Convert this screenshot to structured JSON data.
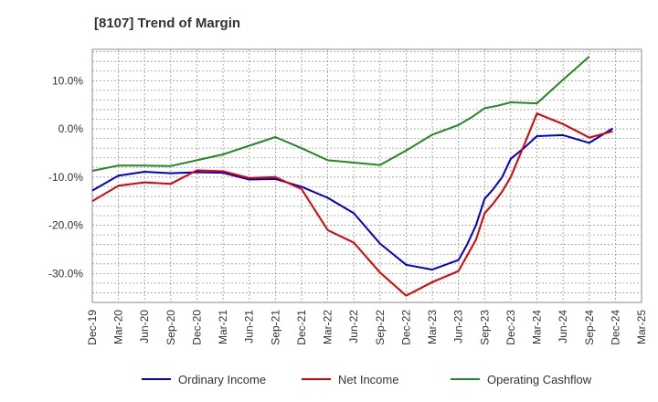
{
  "chart_data": {
    "type": "line",
    "title": "[8107]  Trend of Margin",
    "xlabel": "",
    "ylabel": "",
    "x": [
      "Dec-19",
      "Mar-20",
      "Jun-20",
      "Sep-20",
      "Dec-20",
      "Mar-21",
      "Jun-21",
      "Sep-21",
      "Dec-21",
      "Mar-22",
      "Jun-22",
      "Sep-22",
      "Dec-22",
      "Mar-23",
      "Jun-23",
      "Sep-23",
      "Dec-23",
      "Mar-24",
      "Jun-24",
      "Sep-24",
      "Dec-24",
      "Mar-25"
    ],
    "ylim": [
      -36,
      16.5
    ],
    "yticks": [
      10,
      0,
      -10,
      -20,
      -30
    ],
    "ytick_labels": [
      "10.0%",
      "0.0%",
      "-10.0%",
      "-20.0%",
      "-30.0%"
    ],
    "grid": true,
    "legend_position": "bottom",
    "series": [
      {
        "name": "Ordinary Income",
        "color": "#0000cc",
        "points": [
          [
            0,
            -12.8
          ],
          [
            1,
            -9.7
          ],
          [
            2,
            -8.9
          ],
          [
            3,
            -9.2
          ],
          [
            4,
            -9.0
          ],
          [
            5,
            -9.1
          ],
          [
            6,
            -10.5
          ],
          [
            7,
            -10.4
          ],
          [
            8,
            -12.0
          ],
          [
            9,
            -14.3
          ],
          [
            10,
            -17.5
          ],
          [
            11,
            -23.8
          ],
          [
            12,
            -28.2
          ],
          [
            13,
            -29.2
          ],
          [
            14,
            -27.2
          ],
          [
            14.33,
            -24.0
          ],
          [
            14.67,
            -20.0
          ],
          [
            15,
            -14.5
          ],
          [
            15.33,
            -12.5
          ],
          [
            15.67,
            -10.0
          ],
          [
            16,
            -6.2
          ],
          [
            16.5,
            -4.0
          ],
          [
            17,
            -1.5
          ],
          [
            18,
            -1.3
          ],
          [
            19,
            -2.9
          ],
          [
            19.9,
            0.1
          ]
        ]
      },
      {
        "name": "Net Income",
        "color": "#dd0000",
        "points": [
          [
            0,
            -15.0
          ],
          [
            1,
            -11.8
          ],
          [
            2,
            -11.1
          ],
          [
            3,
            -11.4
          ],
          [
            4,
            -8.6
          ],
          [
            5,
            -8.8
          ],
          [
            6,
            -10.2
          ],
          [
            7,
            -10.0
          ],
          [
            8,
            -12.5
          ],
          [
            9,
            -21.0
          ],
          [
            10,
            -23.6
          ],
          [
            11,
            -29.8
          ],
          [
            12,
            -34.6
          ],
          [
            13,
            -31.8
          ],
          [
            14,
            -29.5
          ],
          [
            14.67,
            -23.0
          ],
          [
            15,
            -17.5
          ],
          [
            15.33,
            -15.5
          ],
          [
            15.67,
            -13.0
          ],
          [
            16,
            -10.0
          ],
          [
            16.5,
            -3.5
          ],
          [
            17,
            3.2
          ],
          [
            18,
            1.0
          ],
          [
            19,
            -1.8
          ],
          [
            19.9,
            -0.5
          ]
        ]
      },
      {
        "name": "Operating Cashflow",
        "color": "#228822",
        "points": [
          [
            0,
            -8.7
          ],
          [
            1,
            -7.6
          ],
          [
            2,
            -7.6
          ],
          [
            3,
            -7.7
          ],
          [
            4,
            -6.5
          ],
          [
            5,
            -5.3
          ],
          [
            6,
            -3.5
          ],
          [
            7,
            -1.7
          ],
          [
            8,
            -4.0
          ],
          [
            9,
            -6.5
          ],
          [
            10,
            -7.0
          ],
          [
            11,
            -7.5
          ],
          [
            12,
            -4.5
          ],
          [
            13,
            -1.2
          ],
          [
            14,
            0.8
          ],
          [
            14.5,
            2.4
          ],
          [
            15,
            4.3
          ],
          [
            15.5,
            4.8
          ],
          [
            16,
            5.5
          ],
          [
            17,
            5.3
          ],
          [
            18,
            10.2
          ],
          [
            19,
            15.0
          ]
        ]
      }
    ]
  }
}
